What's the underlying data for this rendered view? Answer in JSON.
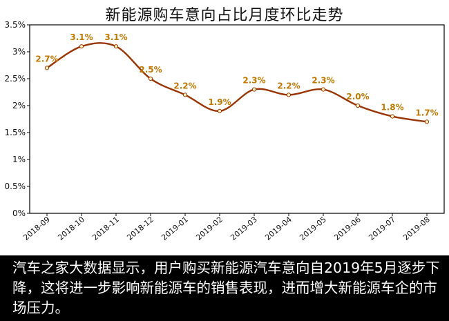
{
  "chart_data": {
    "type": "line",
    "title": "新能源购车意向占比月度环比走势",
    "xlabel": "",
    "ylabel": "",
    "categories": [
      "2018-09",
      "2018-10",
      "2018-11",
      "2018-12",
      "2019-01",
      "2019-02",
      "2019-03",
      "2019-04",
      "2019-05",
      "2019-06",
      "2019-07",
      "2019-08"
    ],
    "values": [
      2.7,
      3.1,
      3.1,
      2.5,
      2.2,
      1.9,
      2.3,
      2.2,
      2.3,
      2.0,
      1.8,
      1.7
    ],
    "data_labels": [
      "2.7%",
      "3.1%",
      "3.1%",
      "2.5%",
      "2.2%",
      "1.9%",
      "2.3%",
      "2.2%",
      "2.3%",
      "2.0%",
      "1.8%",
      "1.7%"
    ],
    "ylim": [
      0,
      3.5
    ],
    "yticks": [
      0,
      0.5,
      1,
      1.5,
      2,
      2.5,
      3,
      3.5
    ],
    "ytick_labels": [
      "0%",
      "0.5%",
      "1%",
      "1.5%",
      "2%",
      "2.5%",
      "3%",
      "3.5%"
    ],
    "grid": false,
    "line_color": "#993300",
    "label_color": "#c07800"
  },
  "caption": {
    "text": "汽车之家大数据显示，用户购买新能源汽车意向自2019年5月逐步下降，这将进一步影响新能源车的销售表现，进而增大新能源车企的市场压力。"
  }
}
